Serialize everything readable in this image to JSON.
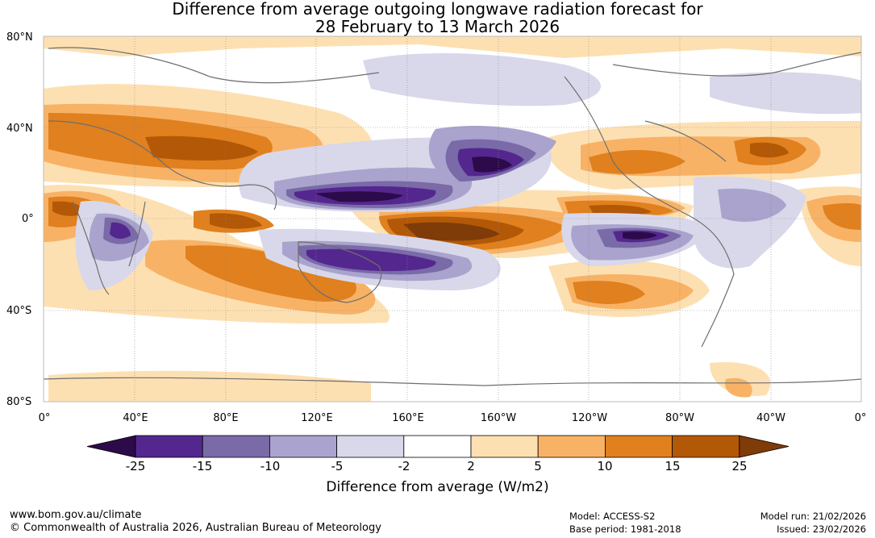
{
  "title_line1": "Difference from average outgoing longwave radiation forecast for",
  "title_line2": "28 February to 13 March 2026",
  "lat_labels": [
    "80°N",
    "40°N",
    "0°",
    "40°S",
    "80°S"
  ],
  "lon_labels": [
    "0°",
    "40°E",
    "80°E",
    "120°E",
    "160°E",
    "160°W",
    "120°W",
    "80°W",
    "40°W",
    "0°"
  ],
  "colorbar": {
    "ticks": [
      "-25",
      "-15",
      "-10",
      "-5",
      "-2",
      "2",
      "5",
      "10",
      "15",
      "25"
    ],
    "colors": [
      "#2d0a4a",
      "#54278f",
      "#7a6aa8",
      "#a9a3cd",
      "#d8d8ea",
      "#ffffff",
      "#fde0b2",
      "#f8b266",
      "#e0801e",
      "#b35806",
      "#7f3b08"
    ],
    "label": "Difference from average (W/m2)"
  },
  "footer": {
    "website": "www.bom.gov.au/climate",
    "copyright": "© Commonwealth of Australia 2026, Australian Bureau of Meteorology",
    "model": "Model: ACCESS-S2",
    "base_period": "Base period: 1981-2018",
    "model_run": "Model run: 21/02/2026",
    "issued": "Issued: 23/02/2026"
  }
}
